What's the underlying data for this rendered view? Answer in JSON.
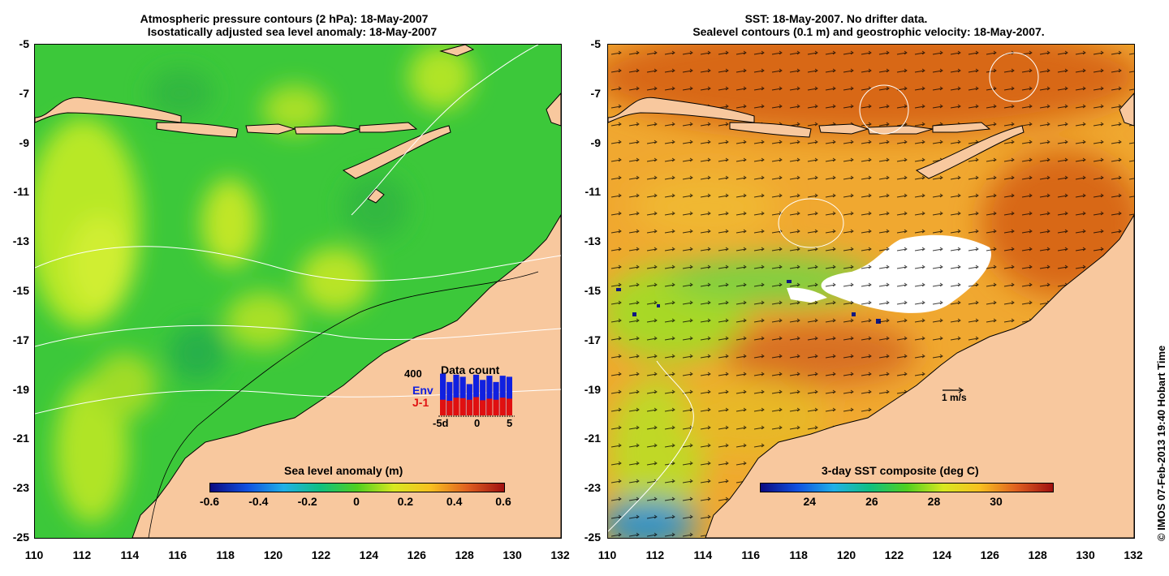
{
  "left_panel": {
    "title_line1": "Atmospheric pressure contours (2 hPa): 18-May-2007",
    "title_line2": "Isostatically adjusted sea level anomaly: 18-May-2007",
    "colorbar": {
      "label": "Sea level anomaly (m)",
      "ticks": [
        "-0.6",
        "-0.4",
        "-0.2",
        "0",
        "0.2",
        "0.4",
        "0.6"
      ],
      "range": [
        -0.6,
        0.6
      ]
    },
    "data_count": {
      "title": "Data count",
      "max_label": "400",
      "env_label": "Env",
      "j1_label": "J-1",
      "axis_labels": [
        "-5d",
        "0",
        "5"
      ],
      "env_counts": [
        400,
        320,
        390,
        370,
        300,
        390,
        340,
        380,
        320,
        380,
        370
      ],
      "j1_counts": [
        150,
        140,
        170,
        165,
        150,
        175,
        145,
        160,
        150,
        170,
        160
      ],
      "env_color": "#1020e0",
      "j1_color": "#e01010"
    },
    "icons": [
      "land-mask-icon",
      "pressure-contour-icon"
    ]
  },
  "right_panel": {
    "title_line1": "SST: 18-May-2007. No drifter data.",
    "title_line2": "Sealevel contours (0.1 m) and geostrophic velocity: 18-May-2007.",
    "colorbar": {
      "label": "3-day SST composite (deg C)",
      "ticks": [
        "24",
        "26",
        "28",
        "30"
      ],
      "range": [
        22.4,
        31.8
      ]
    },
    "velocity_scale_label": "1 m/s",
    "icons": [
      "velocity-arrow-icon"
    ]
  },
  "axes": {
    "lat_labels": [
      "-5",
      "-7",
      "-9",
      "-11",
      "-13",
      "-15",
      "-17",
      "-19",
      "-21",
      "-23",
      "-25"
    ],
    "lon_labels": [
      "110",
      "112",
      "114",
      "116",
      "118",
      "120",
      "122",
      "124",
      "126",
      "128",
      "130",
      "132"
    ],
    "lat_range": [
      -25,
      -5
    ],
    "lon_range": [
      110,
      132
    ]
  },
  "credit": "© IMOS 07-Feb-2013 19:40 Hobart Time",
  "colors": {
    "land": "#f8c89e",
    "sla_base": "#38c838",
    "sst_base": "#f0a030",
    "contour": "#ffffff"
  }
}
